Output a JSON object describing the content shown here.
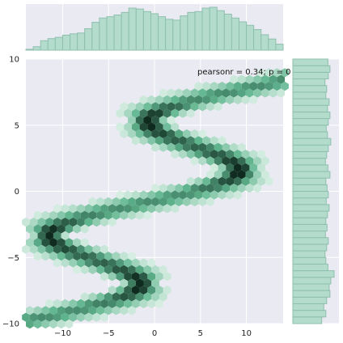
{
  "chart_data": {
    "type": "jointplot-hexbin",
    "annotation": "pearsonr = 0.34; p = 0",
    "x_ticks": [
      -10,
      -5,
      0,
      5,
      10
    ],
    "y_ticks": [
      -10,
      -5,
      0,
      5,
      10
    ],
    "x_tick_labels": [
      "−10",
      "−5",
      "0",
      "5",
      "10"
    ],
    "y_tick_labels": [
      "−10",
      "−5",
      "0",
      "5",
      "10"
    ],
    "xlim": [
      -14,
      14
    ],
    "ylim": [
      -10,
      10
    ],
    "grid": true,
    "colors": {
      "background": "#eaeaf2",
      "hist_fill": "#b3dccd",
      "hist_edge": "#8fbfae",
      "hex_light": "#e6f5ee",
      "hex_mid": "#5fb58e",
      "hex_dark": "#0f2a1f",
      "grid": "#ffffff"
    },
    "curve_description": "y runs -10..10; x = 1.25*y + 7.5*sin(0.73*y + 0.65)",
    "curve_params": {
      "a": 1.25,
      "b": 7.5,
      "freq": 0.73,
      "phase": 0.65
    },
    "x_marginal": {
      "bin_start": -14,
      "bin_width": 0.8,
      "heights": [
        0.02,
        0.08,
        0.22,
        0.27,
        0.3,
        0.35,
        0.38,
        0.4,
        0.5,
        0.65,
        0.75,
        0.78,
        0.82,
        0.88,
        0.98,
        0.96,
        0.9,
        0.85,
        0.78,
        0.72,
        0.7,
        0.8,
        0.88,
        0.9,
        0.98,
        1.0,
        0.92,
        0.84,
        0.75,
        0.66,
        0.58,
        0.48,
        0.36,
        0.26,
        0.14
      ]
    },
    "y_marginal": {
      "bin_start": -10,
      "bin_width": 0.5,
      "heights": [
        0.7,
        0.8,
        0.75,
        0.82,
        0.9,
        0.88,
        0.92,
        1.0,
        0.85,
        0.8,
        0.78,
        0.82,
        0.86,
        0.79,
        0.83,
        0.8,
        0.84,
        0.88,
        0.81,
        0.86,
        0.83,
        0.8,
        0.9,
        0.85,
        0.79,
        0.82,
        0.86,
        0.92,
        0.84,
        0.81,
        0.86,
        0.9,
        0.84,
        0.88,
        0.8,
        0.82,
        0.78,
        0.86,
        0.9,
        0.85
      ]
    }
  }
}
